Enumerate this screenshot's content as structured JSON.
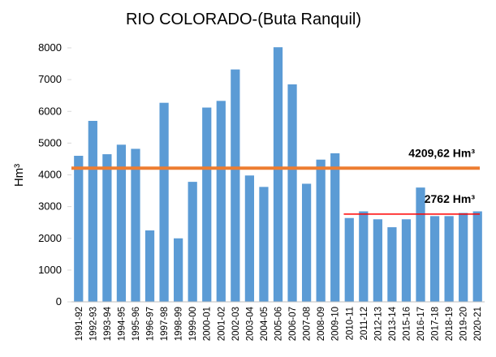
{
  "chart_data": {
    "type": "bar",
    "title": "RIO COLORADO-(Buta Ranquil)",
    "y_label": "Hm³",
    "categories": [
      "1991-92",
      "1992-93",
      "1993-94",
      "1994-95",
      "1995-96",
      "1996-97",
      "1997-98",
      "1998-99",
      "1999-00",
      "2000-01",
      "2001-02",
      "2002-03",
      "2003-04",
      "2004-05",
      "2005-06",
      "2006-07",
      "2007-08",
      "2008-09",
      "2009-10",
      "2010-11",
      "2011-12",
      "2012-13",
      "2013-14",
      "2015-16",
      "2016-17",
      "2017-18",
      "2018-19",
      "2019-20",
      "2020-21"
    ],
    "values": [
      4600,
      5700,
      4650,
      4950,
      4820,
      2250,
      6270,
      2000,
      3780,
      6120,
      6330,
      7320,
      3980,
      3620,
      8020,
      6850,
      3720,
      4480,
      4680,
      2640,
      2850,
      2600,
      2350,
      2600,
      3600,
      2700,
      2700,
      2800,
      2850
    ],
    "color": "#5b9bd5",
    "ylim": [
      0,
      8000
    ],
    "yticks": [
      0,
      1000,
      2000,
      3000,
      4000,
      5000,
      6000,
      7000,
      8000
    ],
    "reference_lines": [
      {
        "value": 4209.62,
        "label": "4209,62 Hm³",
        "color": "#ed7d31",
        "from": "1991-92"
      },
      {
        "value": 2762,
        "label": "2762 Hm³",
        "color": "#ff0000",
        "from": "2010-11"
      }
    ]
  }
}
